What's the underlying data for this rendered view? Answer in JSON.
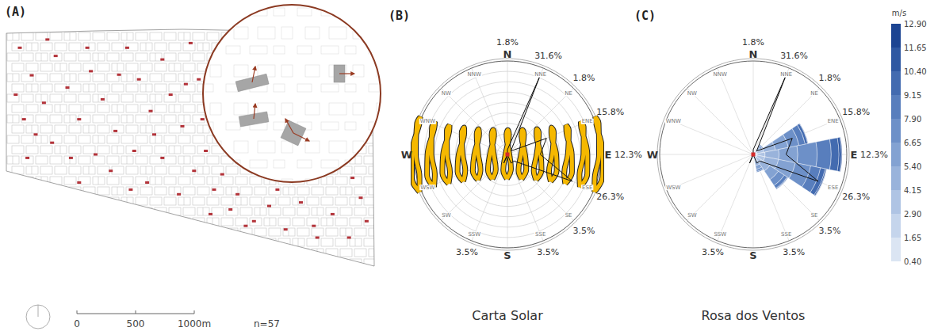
{
  "map": {
    "panel": "(A)",
    "color": "#b3333a",
    "scale_bar": {
      "ticks": [
        0,
        500,
        {
          "value": 1000,
          "label": "1000m"
        }
      ]
    },
    "count_label": "n=57",
    "buildings": [
      [
        115,
        1890
      ],
      [
        216,
        1655
      ],
      [
        320,
        1420
      ],
      [
        150,
        1280
      ],
      [
        420,
        1820
      ],
      [
        520,
        1550
      ],
      [
        620,
        1280
      ],
      [
        390,
        1080
      ],
      [
        720,
        1690
      ],
      [
        820,
        1450
      ],
      [
        930,
        1180
      ],
      [
        760,
        980
      ],
      [
        1030,
        1890
      ],
      [
        1130,
        1620
      ],
      [
        1230,
        1350
      ],
      [
        1090,
        1010
      ],
      [
        1330,
        1790
      ],
      [
        1400,
        1490
      ],
      [
        1500,
        1220
      ],
      [
        1330,
        950
      ],
      [
        1570,
        1930
      ],
      [
        1640,
        1620
      ],
      [
        1670,
        1280
      ],
      [
        1600,
        840
      ],
      [
        1770,
        680
      ],
      [
        1910,
        510
      ],
      [
        1700,
        1010
      ],
      [
        1970,
        640
      ],
      [
        2110,
        410
      ],
      [
        2240,
        540
      ],
      [
        2380,
        340
      ],
      [
        2510,
        570
      ],
      [
        2650,
        270
      ],
      [
        2780,
        470
      ],
      [
        2920,
        270
      ],
      [
        3020,
        610
      ],
      [
        3070,
        410
      ],
      [
        2310,
        680
      ],
      [
        2040,
        370
      ],
      [
        1840,
        810
      ],
      [
        80,
        1490
      ],
      [
        250,
        1150
      ],
      [
        550,
        950
      ],
      [
        890,
        840
      ],
      [
        1200,
        740
      ],
      [
        1470,
        640
      ],
      [
        690,
        1890
      ],
      [
        350,
        1960
      ],
      [
        960,
        1660
      ],
      [
        1260,
        1150
      ],
      [
        620,
        740
      ],
      [
        1060,
        680
      ],
      [
        1530,
        1580
      ],
      [
        1740,
        470
      ],
      [
        2620,
        370
      ],
      [
        2950,
        780
      ],
      [
        180,
        950
      ]
    ]
  },
  "chart_data": [
    {
      "type": "sunpath",
      "panel": "(B)",
      "title": "Carta Solar",
      "rlim": [
        0,
        90
      ],
      "rticks": [
        0,
        10,
        20,
        30,
        40,
        50,
        60,
        70,
        80,
        90
      ],
      "grid": true,
      "tick_labels": false,
      "color": "#f5b800",
      "analemmas": [
        [
          [
            83.7,
            -36.0
          ],
          [
            91.4,
            -21.6
          ],
          [
            91.9,
            0
          ],
          [
            85.4,
            29.3
          ],
          [
            84.5,
            36.0
          ],
          [
            87.7,
            30.0
          ],
          [
            88.1,
            0
          ],
          [
            83.9,
            -23.1
          ]
        ],
        [
          [
            69.7,
            -31.4
          ],
          [
            76.8,
            -18.8
          ],
          [
            76.9,
            0
          ],
          [
            71.0,
            25.5
          ],
          [
            70.5,
            31.4
          ],
          [
            73.3,
            26.1
          ],
          [
            73.1,
            0
          ],
          [
            69.3,
            -20.1
          ]
        ],
        [
          [
            55.6,
            -28.1
          ],
          [
            62.1,
            -16.8
          ],
          [
            61.9,
            0
          ],
          [
            56.6,
            22.8
          ],
          [
            56.5,
            28.1
          ],
          [
            59.0,
            23.4
          ],
          [
            58.1,
            0
          ],
          [
            54.6,
            -18.0
          ]
        ],
        [
          [
            41.6,
            -25.9
          ],
          [
            47.4,
            -15.5
          ],
          [
            46.9,
            0
          ],
          [
            42.2,
            21.0
          ],
          [
            42.4,
            25.9
          ],
          [
            44.6,
            21.6
          ],
          [
            43.1,
            0
          ],
          [
            40.0,
            -16.6
          ]
        ],
        [
          [
            27.6,
            -24.5
          ],
          [
            32.8,
            -14.6
          ],
          [
            31.9,
            0
          ],
          [
            27.9,
            19.9
          ],
          [
            28.4,
            24.5
          ],
          [
            30.2,
            20.4
          ],
          [
            28.1,
            0
          ],
          [
            25.3,
            -15.7
          ]
        ],
        [
          [
            13.6,
            -23.7
          ],
          [
            18.1,
            -14.2
          ],
          [
            16.9,
            0
          ],
          [
            13.5,
            19.2
          ],
          [
            14.4,
            23.7
          ],
          [
            15.9,
            19.7
          ],
          [
            13.1,
            0
          ],
          [
            10.6,
            -15.2
          ]
        ],
        [
          [
            -0.5,
            -23.4
          ],
          [
            3.4,
            -14
          ],
          [
            1.9,
            0
          ],
          [
            -0.9,
            19
          ],
          [
            0.4,
            23.4
          ],
          [
            1.5,
            19.5
          ],
          [
            -1.9,
            0
          ],
          [
            -4.0,
            -15
          ]
        ],
        [
          [
            -14.5,
            -23.7
          ],
          [
            -11.2,
            -14.2
          ],
          [
            -13.1,
            0
          ],
          [
            -15.2,
            19.2
          ],
          [
            -13.7,
            23.7
          ],
          [
            -12.8,
            19.7
          ],
          [
            -16.9,
            0
          ],
          [
            -18.7,
            -15.2
          ]
        ],
        [
          [
            -28.5,
            -24.5
          ],
          [
            -25.9,
            -14.6
          ],
          [
            -28.1,
            0
          ],
          [
            -29.6,
            19.9
          ],
          [
            -27.7,
            24.5
          ],
          [
            -27.2,
            20.4
          ],
          [
            -31.9,
            0
          ],
          [
            -33.3,
            -15.7
          ]
        ],
        [
          [
            -42.5,
            -25.9
          ],
          [
            -40.6,
            -15.5
          ],
          [
            -43.1,
            0
          ],
          [
            -44.0,
            21.0
          ],
          [
            -41.7,
            25.9
          ],
          [
            -41.5,
            21.6
          ],
          [
            -46.9,
            0
          ],
          [
            -48.0,
            -16.6
          ]
        ],
        [
          [
            -56.6,
            -28.1
          ],
          [
            -55.3,
            -16.8
          ],
          [
            -58.1,
            0
          ],
          [
            -58.3,
            22.8
          ],
          [
            -55.7,
            28.1
          ],
          [
            -55.9,
            23.4
          ],
          [
            -61.9,
            0
          ],
          [
            -62.6,
            -18.0
          ]
        ],
        [
          [
            -70.6,
            -31.4
          ],
          [
            -69.9,
            -18.8
          ],
          [
            -73.1,
            0
          ],
          [
            -72.7,
            25.5
          ],
          [
            -69.8,
            31.4
          ],
          [
            -70.2,
            26.1
          ],
          [
            -76.9,
            0
          ],
          [
            -77.3,
            -20.1
          ]
        ],
        [
          [
            -84.6,
            -36.0
          ],
          [
            -84.6,
            -21.6
          ],
          [
            -88.1,
            0
          ],
          [
            -87.1,
            29.3
          ],
          [
            -83.8,
            36.0
          ],
          [
            -84.6,
            30.0
          ],
          [
            -91.9,
            0
          ],
          [
            -91.9,
            -23.1
          ]
        ]
      ],
      "orientation": {
        "rlim": [
          0,
          35
        ],
        "directions": [
          "N",
          "NNE",
          "NE",
          "ENE",
          "E",
          "ESE",
          "SE",
          "SSE",
          "S",
          "SSW",
          "SW",
          "WSW",
          "W",
          "WNW",
          "NW",
          "NNW"
        ],
        "values": [
          1.8,
          31.6,
          1.8,
          15.8,
          12.3,
          26.3,
          3.5,
          3.5,
          0,
          3.5,
          0,
          0,
          0,
          0,
          0,
          0
        ],
        "value_labels": [
          "1.8%",
          "31.6%",
          "1.8%",
          "15.8%",
          "12.3%",
          "26.3%",
          "3.5%",
          "3.5%",
          null,
          "3.5%",
          null,
          null,
          null,
          null,
          null,
          null
        ]
      }
    },
    {
      "type": "windrose",
      "panel": "(C)",
      "title": "Rosa dos Ventos",
      "rlim": [
        0,
        30
      ],
      "tick_labels": false,
      "stacked": true,
      "categories": [
        "N",
        "NNE",
        "NE",
        "ENE",
        "E",
        "ESE",
        "SE",
        "SSE",
        "S",
        "SSW",
        "SW",
        "WSW",
        "W",
        "WNW",
        "NW",
        "NNW"
      ],
      "series": [
        {
          "color": "#dbe5f3",
          "values": [
            0.2,
            0.2,
            0.3,
            0.3,
            0.3,
            0.3,
            0.3,
            0.3,
            0.2,
            0.2,
            0.2,
            0.2,
            0.2,
            0.2,
            0.2,
            0.2
          ]
        },
        {
          "color": "#c5d5ec",
          "values": [
            0.2,
            0.3,
            0.6,
            1.0,
            1.0,
            1.0,
            0.9,
            0.7,
            0.4,
            0.2,
            0.2,
            0.2,
            0.2,
            0.2,
            0.2,
            0.2
          ]
        },
        {
          "color": "#afc4e4",
          "values": [
            0.1,
            0.3,
            0.9,
            2.2,
            2.5,
            2.5,
            2.0,
            1.2,
            0.4,
            0,
            0,
            0,
            0,
            0,
            0,
            0
          ]
        },
        {
          "color": "#99b3db",
          "values": [
            0,
            0.2,
            1.0,
            3.8,
            4.5,
            4.5,
            3.2,
            1.5,
            0.3,
            0,
            0,
            0,
            0,
            0,
            0,
            0
          ]
        },
        {
          "color": "#83a2d2",
          "values": [
            0,
            0,
            0.7,
            4.2,
            6.0,
            5.5,
            3.3,
            1.2,
            0.2,
            0,
            0,
            0,
            0,
            0,
            0,
            0
          ]
        },
        {
          "color": "#6d90c8",
          "values": [
            0,
            0,
            0.3,
            3.5,
            6.2,
            5.0,
            2.3,
            0.7,
            0,
            0,
            0,
            0,
            0,
            0,
            0,
            0
          ]
        },
        {
          "color": "#587ebd",
          "values": [
            0,
            0,
            0.2,
            2.0,
            4.5,
            3.2,
            1.1,
            0.3,
            0,
            0,
            0,
            0,
            0,
            0,
            0,
            0
          ]
        },
        {
          "color": "#436bb0",
          "values": [
            0,
            0,
            0,
            0.8,
            2.5,
            1.5,
            0.3,
            0.1,
            0,
            0,
            0,
            0,
            0,
            0,
            0,
            0
          ]
        },
        {
          "color": "#2f58a2",
          "values": [
            0,
            0,
            0,
            0.2,
            0.8,
            0.4,
            0.1,
            0,
            0,
            0,
            0,
            0,
            0,
            0,
            0,
            0
          ]
        },
        {
          "color": "#1c4492",
          "values": [
            0,
            0,
            0,
            0,
            0.2,
            0.1,
            0,
            0,
            0,
            0,
            0,
            0,
            0,
            0,
            0,
            0
          ]
        }
      ],
      "color_scale": {
        "title": "m/s",
        "ticks": [
          {
            "value": 0.4,
            "label": "0.40"
          },
          1.65,
          {
            "value": 2.9,
            "label": "2.90"
          },
          4.15,
          {
            "value": 5.4,
            "label": "5.40"
          },
          6.65,
          {
            "value": 7.9,
            "label": "7.90"
          },
          9.15,
          {
            "value": 10.4,
            "label": "10.40"
          },
          11.65,
          {
            "value": 12.9,
            "label": "12.90"
          }
        ]
      },
      "orientation": {
        "rlim": [
          0,
          35
        ],
        "directions": [
          "N",
          "NNE",
          "NE",
          "ENE",
          "E",
          "ESE",
          "SE",
          "SSE",
          "S",
          "SSW",
          "SW",
          "WSW",
          "W",
          "WNW",
          "NW",
          "NNW"
        ],
        "values": [
          1.8,
          31.6,
          1.8,
          15.8,
          12.3,
          26.3,
          3.5,
          3.5,
          0,
          3.5,
          0,
          0,
          0,
          0,
          0,
          0
        ],
        "value_labels": [
          "1.8%",
          "31.6%",
          "1.8%",
          "15.8%",
          "12.3%",
          "26.3%",
          "3.5%",
          "3.5%",
          null,
          "3.5%",
          null,
          null,
          null,
          null,
          null,
          null
        ]
      }
    }
  ]
}
